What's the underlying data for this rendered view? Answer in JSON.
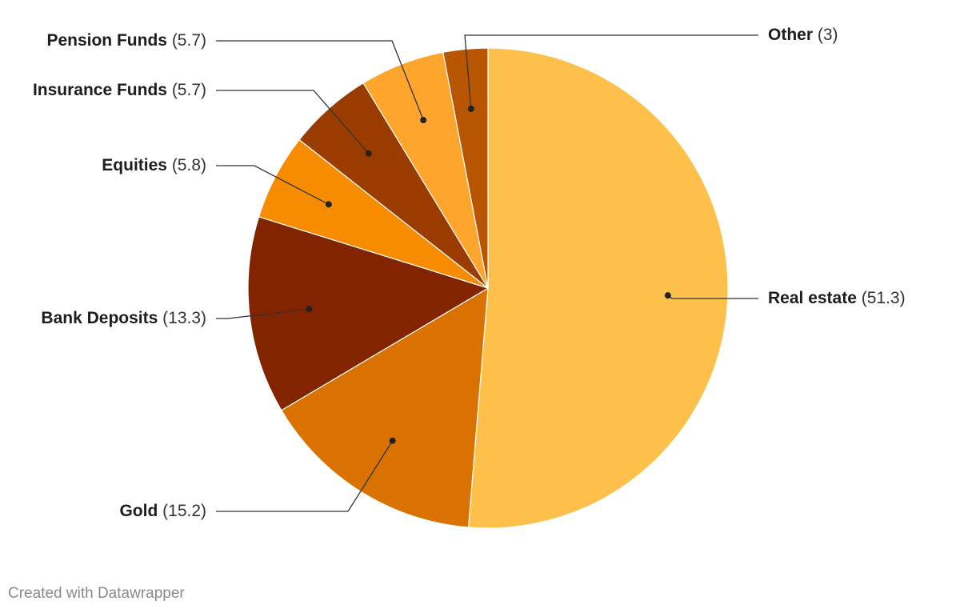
{
  "chart_data": {
    "type": "pie",
    "categories": [
      "Real estate",
      "Gold",
      "Bank Deposits",
      "Equities",
      "Insurance Funds",
      "Pension Funds",
      "Other"
    ],
    "values": [
      51.3,
      15.2,
      13.3,
      5.8,
      5.7,
      5.7,
      3
    ],
    "value_labels": [
      "(51.3)",
      "(15.2)",
      "(13.3)",
      "(5.8)",
      "(5.7)",
      "(5.7)",
      "(3)"
    ],
    "colors": [
      "#fdc04b",
      "#d97200",
      "#832400",
      "#f88c00",
      "#9a3c00",
      "#fda52d",
      "#b85500"
    ],
    "credit": "Created with Datawrapper"
  }
}
